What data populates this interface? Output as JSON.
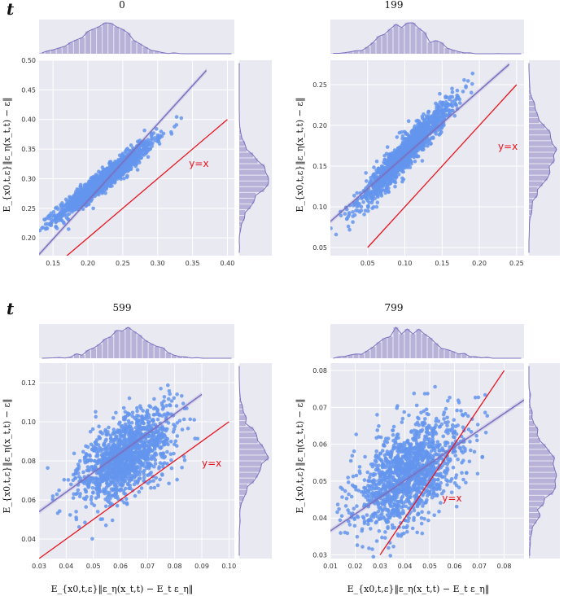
{
  "figure": {
    "t_label": "t",
    "xlabel": "E_{x0,t,ε}‖ε_η(x_t,t) − E_t ε_η‖",
    "ylabel": "E_{x0,t,ε}‖ε_η(x_t,t) − ε‖",
    "ref_line_label": "y=x"
  },
  "colors": {
    "panel_bg": "#e9e9f2",
    "points": "#6495ed",
    "fit_line": "#7a6fbf",
    "hist": "#b8b2d9",
    "ref_line": "#e8141e"
  },
  "chart_data": [
    {
      "type": "scatter",
      "title": "0",
      "xlim": [
        0.13,
        0.41
      ],
      "ylim": [
        0.17,
        0.5
      ],
      "xticks": [
        "0.15",
        "0.20",
        "0.25",
        "0.30",
        "0.35",
        "0.40"
      ],
      "yticks": [
        "0.20",
        "0.25",
        "0.30",
        "0.35",
        "0.40",
        "0.45",
        "0.50"
      ],
      "center": [
        0.225,
        0.3
      ],
      "spread": [
        0.034,
        0.032
      ],
      "corr": 0.96,
      "fit": {
        "x0": 0.13,
        "y0": 0.172,
        "x1": 0.37,
        "y1": 0.483
      },
      "ref": {
        "x0": 0.15,
        "x1": 0.4
      },
      "ref_label_pos": [
        0.345,
        0.32
      ],
      "n_points": 1400
    },
    {
      "type": "scatter",
      "title": "199",
      "xlim": [
        0.0,
        0.26
      ],
      "ylim": [
        0.04,
        0.28
      ],
      "xticks": [
        "0.05",
        "0.10",
        "0.15",
        "0.20",
        "0.25"
      ],
      "yticks": [
        "0.05",
        "0.10",
        "0.15",
        "0.20",
        "0.25"
      ],
      "center": [
        0.1,
        0.165
      ],
      "spread": [
        0.031,
        0.032
      ],
      "corr": 0.95,
      "fit": {
        "x0": 0.0,
        "y0": 0.082,
        "x1": 0.24,
        "y1": 0.275
      },
      "ref": {
        "x0": 0.05,
        "x1": 0.25
      },
      "ref_label_pos": [
        0.225,
        0.17
      ],
      "n_points": 1400
    },
    {
      "type": "scatter",
      "title": "599",
      "xlim": [
        0.03,
        0.102
      ],
      "ylim": [
        0.03,
        0.13
      ],
      "xticks": [
        "0.03",
        "0.04",
        "0.05",
        "0.06",
        "0.07",
        "0.08",
        "0.09",
        "0.10"
      ],
      "yticks": [
        "0.04",
        "0.06",
        "0.08",
        "0.10",
        "0.12"
      ],
      "center": [
        0.062,
        0.082
      ],
      "spread": [
        0.0085,
        0.0115
      ],
      "corr": 0.52,
      "fit": {
        "x0": 0.03,
        "y0": 0.054,
        "x1": 0.09,
        "y1": 0.114
      },
      "ref": {
        "x0": 0.03,
        "x1": 0.1
      },
      "ref_label_pos": [
        0.09,
        0.077
      ],
      "n_points": 1400
    },
    {
      "type": "scatter",
      "title": "799",
      "xlim": [
        0.01,
        0.088
      ],
      "ylim": [
        0.029,
        0.082
      ],
      "xticks": [
        "0.01",
        "0.02",
        "0.03",
        "0.04",
        "0.05",
        "0.06",
        "0.07",
        "0.08"
      ],
      "yticks": [
        "0.03",
        "0.04",
        "0.05",
        "0.06",
        "0.07",
        "0.08"
      ],
      "center": [
        0.041,
        0.052
      ],
      "spread": [
        0.011,
        0.0075
      ],
      "corr": 0.48,
      "fit": {
        "x0": 0.01,
        "y0": 0.0365,
        "x1": 0.088,
        "y1": 0.072
      },
      "ref": {
        "x0": 0.03,
        "x1": 0.08
      },
      "ref_label_pos": [
        0.055,
        0.0445
      ],
      "n_points": 1400
    }
  ]
}
